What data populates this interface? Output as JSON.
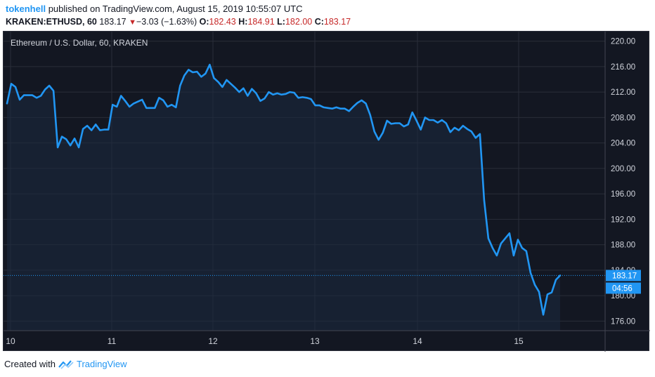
{
  "header": {
    "author": "tokenhell",
    "published_text": "published on TradingView.com, August 15, 2019 10:55:07 UTC",
    "symbol": "KRAKEN:ETHUSD, 60",
    "last_price": "183.17",
    "change": "−3.03 (−1.63%)",
    "open_label": "O:",
    "open_value": "182.43",
    "high_label": "H:",
    "high_value": "184.91",
    "low_label": "L:",
    "low_value": "182.00",
    "close_label": "C:",
    "close_value": "183.17"
  },
  "chart": {
    "legend_title": "Ethereum / U.S. Dollar, 60, KRAKEN",
    "last_price_label": "183.17",
    "countdown_label": "04:56",
    "colors": {
      "background": "#131722",
      "line": "#2196f3",
      "grid": "#2a2e39",
      "text": "#d1d4dc",
      "price_tag": "#2196f3"
    }
  },
  "footer": {
    "created_with": "Created with",
    "brand": "TradingView",
    "logo_icon": "tradingview-logo-icon"
  },
  "chart_data": {
    "type": "line",
    "title": "Ethereum / U.S. Dollar, 60, KRAKEN",
    "xlabel": "",
    "ylabel": "",
    "x_ticks": [
      "10",
      "11",
      "12",
      "13",
      "14",
      "15"
    ],
    "y_ticks": [
      "176.00",
      "180.00",
      "184.00",
      "188.00",
      "192.00",
      "196.00",
      "200.00",
      "204.00",
      "208.00",
      "212.00",
      "216.00",
      "220.00"
    ],
    "ylim": [
      174.5,
      221.5
    ],
    "grid": true,
    "last_price": 183.17,
    "series": [
      {
        "values": [
          210.2,
          213.3,
          212.8,
          210.8,
          211.5,
          211.5,
          211.5,
          211.1,
          211.4,
          212.4,
          213.0,
          212.2,
          203.3,
          205.0,
          204.6,
          203.6,
          204.7,
          203.3,
          206.2,
          206.7,
          206.0,
          206.9,
          206.0,
          206.1,
          206.1,
          210.0,
          209.7,
          211.4,
          210.6,
          209.7,
          210.2,
          210.5,
          210.8,
          209.5,
          209.5,
          209.5,
          211.1,
          210.7,
          209.7,
          210.0,
          209.6,
          213.0,
          214.6,
          215.5,
          215.1,
          215.2,
          214.4,
          214.9,
          216.3,
          214.2,
          213.6,
          212.8,
          213.9,
          213.3,
          212.7,
          212.0,
          212.6,
          211.4,
          212.5,
          211.8,
          210.6,
          211.0,
          212.0,
          211.6,
          211.8,
          211.6,
          211.7,
          212.0,
          211.9,
          211.1,
          211.2,
          211.1,
          210.9,
          209.9,
          209.9,
          209.6,
          209.5,
          209.4,
          209.6,
          209.4,
          209.4,
          209.0,
          209.7,
          210.3,
          210.7,
          210.2,
          208.4,
          205.8,
          204.5,
          205.6,
          207.5,
          207.0,
          207.1,
          207.1,
          206.6,
          206.9,
          208.8,
          207.5,
          206.1,
          208.0,
          207.6,
          207.6,
          207.2,
          207.6,
          207.1,
          205.7,
          206.4,
          206.0,
          206.7,
          206.2,
          205.8,
          204.8,
          205.4,
          195.0,
          189.0,
          187.5,
          186.3,
          188.2,
          189.0,
          189.8,
          186.3,
          188.8,
          187.5,
          187.0,
          183.6,
          181.7,
          180.6,
          177.0,
          180.2,
          180.5,
          182.5,
          183.17
        ]
      }
    ]
  }
}
